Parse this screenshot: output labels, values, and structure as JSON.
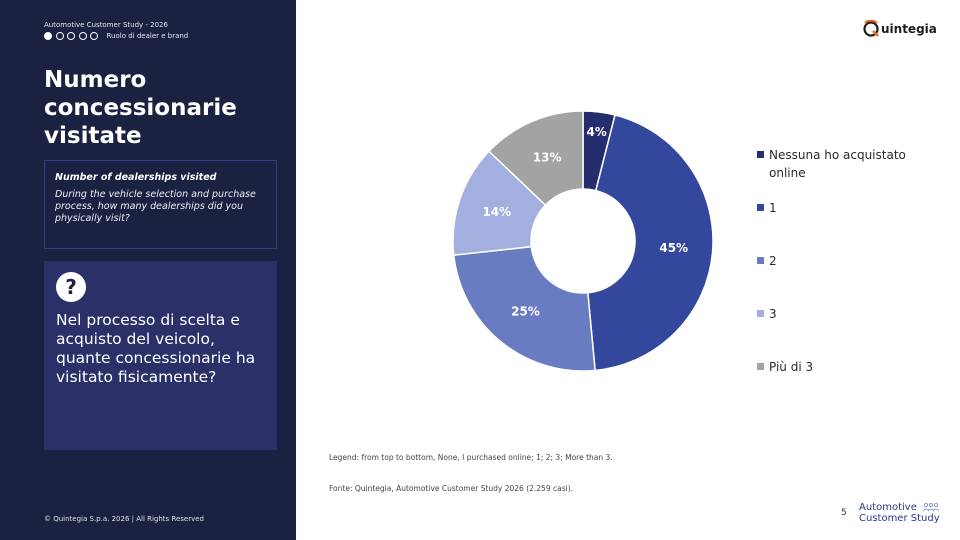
{
  "sidebar": {
    "study_title": "Automotive Customer Study - 2026",
    "progress_label": "Ruolo di dealer e brand",
    "title": "Numero concessionarie visitate",
    "english_box": {
      "title": "Number of dealerships visited",
      "text": "During the vehicle selection and purchase process, how many dealerships did you physically visit?"
    },
    "question_icon": "?",
    "question_text": "Nel processo di scelta e acquisto del veicolo, quante concessionarie ha visitato fisicamente?",
    "copyright": "© Quintegia S.p.a. 2026 | All Rights Reserved"
  },
  "logo": {
    "text": "uintegia",
    "icon": "quintegia-q-icon"
  },
  "chart_data": {
    "type": "pie",
    "donut": true,
    "categories": [
      "Nessuna ho acquistato online",
      "1",
      "2",
      "3",
      "Più di 3"
    ],
    "values": [
      4,
      45,
      25,
      14,
      13
    ],
    "data_labels": [
      "4%",
      "45%",
      "25%",
      "14%",
      "13%"
    ],
    "colors": [
      "#252d6e",
      "#33479c",
      "#6a7cc1",
      "#a3afdf",
      "#a3a3a3"
    ],
    "legend_position": "right"
  },
  "legend_note": "Legend: from top to bottom, None, I purchased online; 1; 2; 3; More than 3.",
  "source": "Fonte: Quintegia, Automotive Customer Study 2026 (2.259 casi).",
  "footer": {
    "page_number": "5",
    "brand_line1": "Automotive",
    "brand_line2": "Customer Study",
    "icon": "people-icon"
  }
}
